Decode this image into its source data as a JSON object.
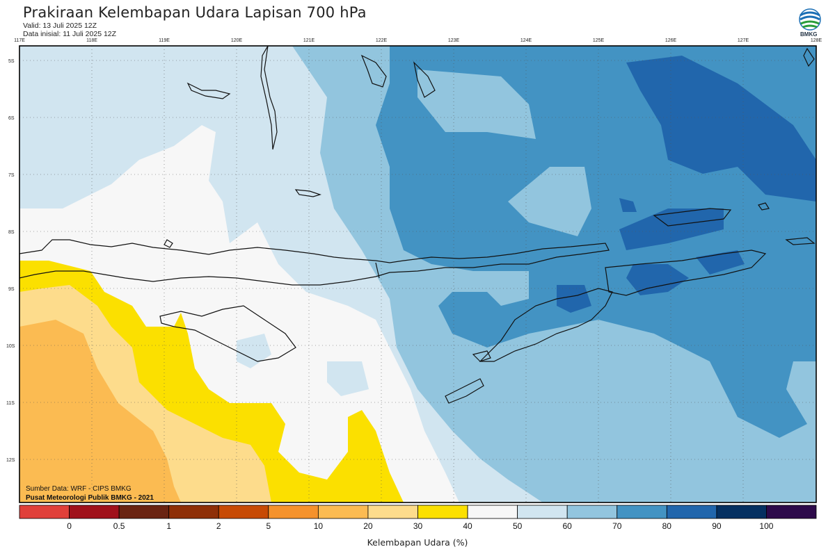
{
  "header": {
    "title": "Prakiraan Kelembapan Udara Lapisan 700 hPa",
    "valid": "Valid: 13 Juli 2025 12Z",
    "init": "Data inisial: 11 Juli 2025 12Z"
  },
  "logo": {
    "text": "BMKG",
    "icon": "bmkg-logo-icon"
  },
  "map": {
    "lon_labels": [
      "117E",
      "118E",
      "119E",
      "120E",
      "121E",
      "122E",
      "123E",
      "124E",
      "125E",
      "126E",
      "127E",
      "128E"
    ],
    "lat_labels": [
      "5S",
      "6S",
      "7S",
      "8S",
      "9S",
      "10S",
      "11S",
      "12S"
    ],
    "credit_source": "Sumber Data: WRF - CIPS BMKG",
    "credit_org": "Pusat Meteorologi Publik BMKG - 2021"
  },
  "colorbar": {
    "title": "Kelembapan Udara (%)",
    "ticks": [
      "0",
      "0.5",
      "1",
      "2",
      "5",
      "10",
      "20",
      "30",
      "40",
      "50",
      "60",
      "70",
      "80",
      "90",
      "100"
    ],
    "colors": [
      "#e0403a",
      "#a0111b",
      "#6a2412",
      "#8e2f08",
      "#c74a04",
      "#f5922c",
      "#fbbb52",
      "#fddc8c",
      "#fbe000",
      "#f7f7f7",
      "#d1e5f0",
      "#92c5de",
      "#4393c3",
      "#2166ac",
      "#053061",
      "#2d0a4a"
    ]
  }
}
